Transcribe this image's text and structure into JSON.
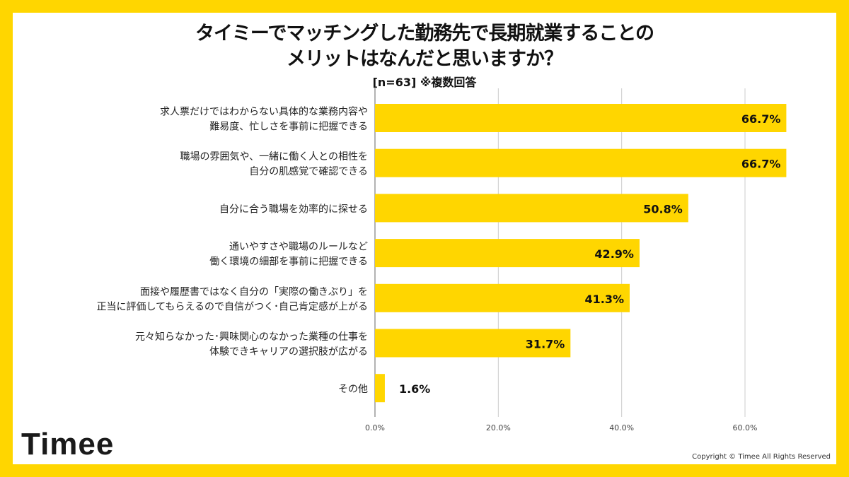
{
  "chart_data": {
    "type": "bar",
    "orientation": "horizontal",
    "title": "タイミーでマッチングした勤務先で長期就業することのメリットはなんだと思いますか？",
    "title_lines": [
      "タイミーでマッチングした勤務先で長期就業することの",
      "メリットはなんだと思いますか？"
    ],
    "subtitle": "[n=63]  ※複数回答",
    "categories": [
      [
        "求人票だけではわからない具体的な業務内容や",
        "難易度、忙しさを事前に把握できる"
      ],
      [
        "職場の雰囲気や、一緒に働く人との相性を",
        "自分の肌感覚で確認できる"
      ],
      [
        "自分に合う職場を効率的に探せる"
      ],
      [
        "通いやすさや職場のルールなど",
        "働く環境の細部を事前に把握できる"
      ],
      [
        "面接や履歴書ではなく自分の「実際の働きぶり」を",
        "正当に評価してもらえるので自信がつく･自己肯定感が上がる"
      ],
      [
        "元々知らなかった･興味関心のなかった業種の仕事を",
        "体験できキャリアの選択肢が広がる"
      ],
      [
        "その他"
      ]
    ],
    "values": [
      66.7,
      66.7,
      50.8,
      42.9,
      41.3,
      31.7,
      1.6
    ],
    "data_labels": [
      "66.7%",
      "66.7%",
      "50.8%",
      "42.9%",
      "41.3%",
      "31.7%",
      "1.6%"
    ],
    "xlim": [
      0,
      66.7
    ],
    "x_ticks": [
      0,
      20,
      40,
      60
    ],
    "x_tick_labels": [
      "0.0%",
      "20.0%",
      "40.0%",
      "60.0%"
    ],
    "grid": true,
    "bar_color": "#FFD600"
  },
  "branding": {
    "logo": "Timee",
    "copyright": "Copyright © Timee All Rights Reserved"
  }
}
